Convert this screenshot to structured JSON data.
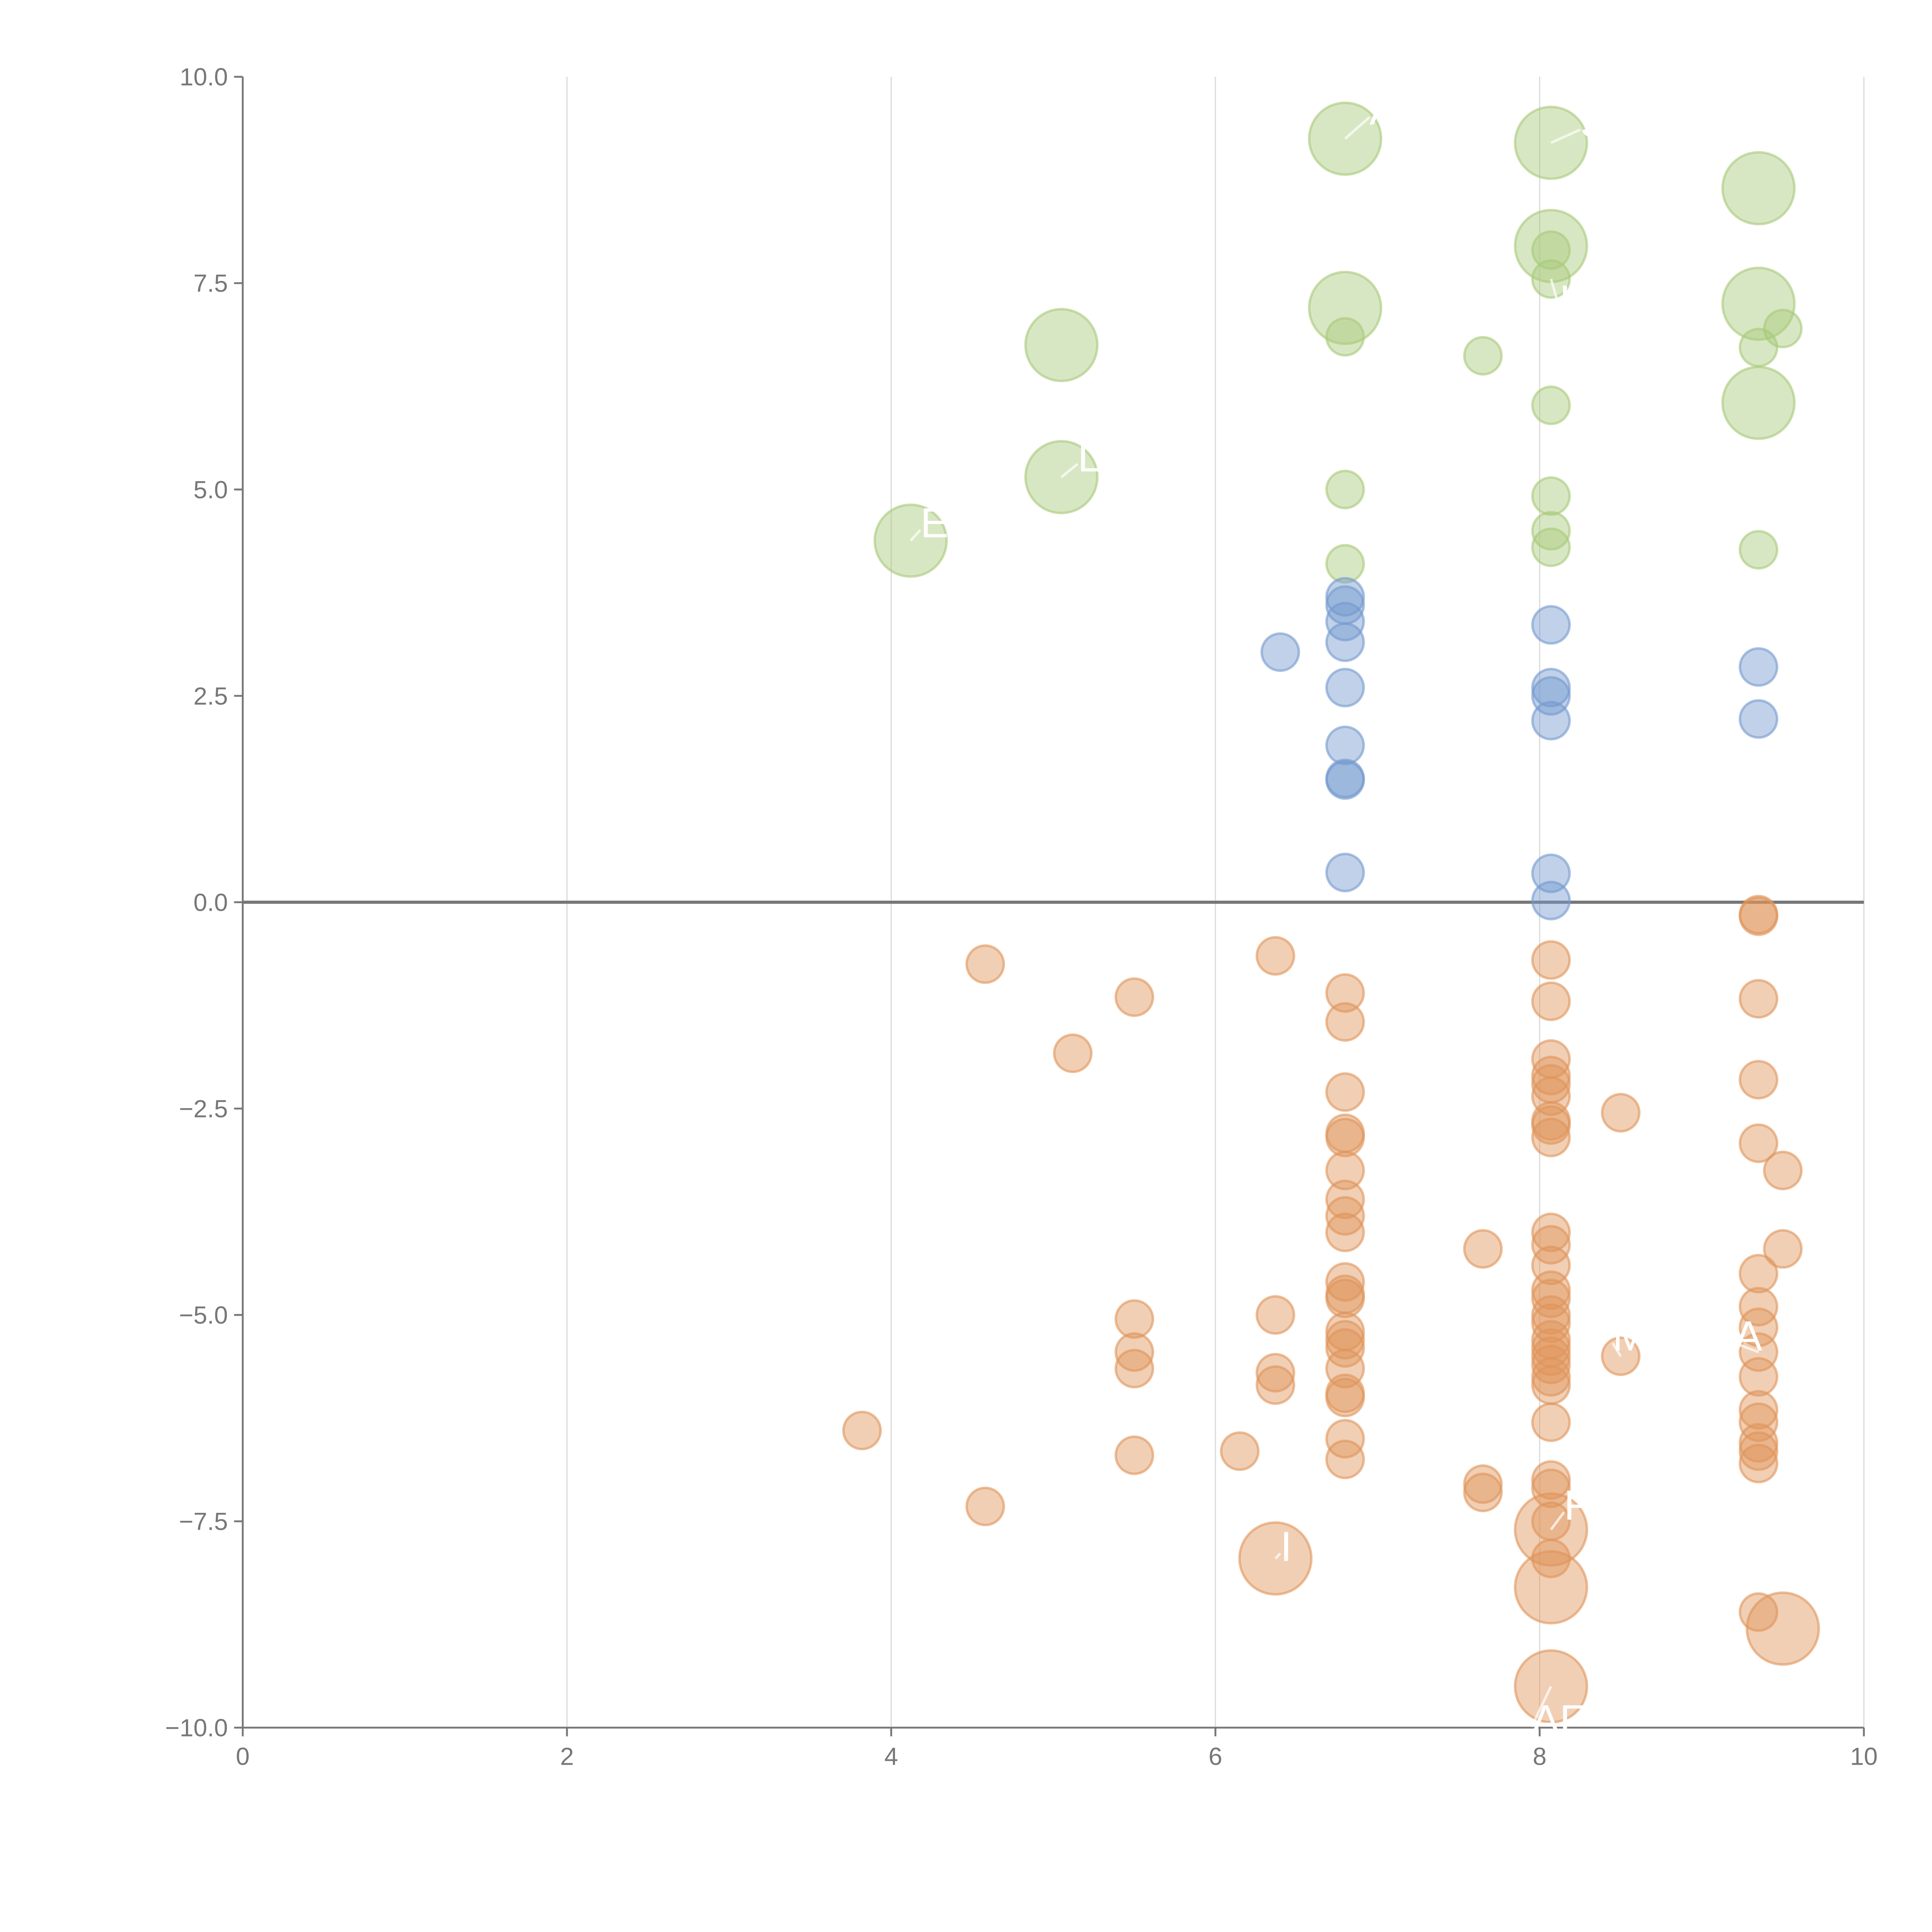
{
  "chart_data": {
    "type": "scatter",
    "title": "",
    "xlabel": "",
    "ylabel": "",
    "xlim": [
      0,
      10
    ],
    "ylim": [
      -10,
      10
    ],
    "xticks": [
      "0",
      "2",
      "4",
      "6",
      "8",
      "10"
    ],
    "xtick_values": [
      0,
      2,
      4,
      6,
      8,
      10
    ],
    "yticks": [
      "10.0",
      "7.5",
      "5.0",
      "2.5",
      "0.0",
      "−2.5",
      "−5.0",
      "−7.5",
      "−10.0"
    ],
    "ytick_values": [
      10,
      7.5,
      5,
      2.5,
      0,
      -2.5,
      -5,
      -7.5,
      -10
    ],
    "grid": "vertical",
    "zero_line": true,
    "size_note": "points are [x, y, size] where size 1=small, 2=large",
    "series": [
      {
        "name": "green",
        "color": "#a9c97a",
        "points": [
          [
            6.8,
            9.25,
            2
          ],
          [
            8.07,
            9.2,
            2
          ],
          [
            9.35,
            8.65,
            2
          ],
          [
            8.07,
            7.95,
            2
          ],
          [
            6.8,
            7.2,
            2
          ],
          [
            5.05,
            6.75,
            2
          ],
          [
            9.35,
            7.25,
            2
          ],
          [
            9.35,
            6.05,
            2
          ],
          [
            5.05,
            5.15,
            2
          ],
          [
            4.12,
            4.38,
            2
          ],
          [
            8.07,
            7.9,
            1
          ],
          [
            8.07,
            7.55,
            1
          ],
          [
            6.8,
            6.85,
            1
          ],
          [
            7.65,
            6.62,
            1
          ],
          [
            9.35,
            6.72,
            1
          ],
          [
            9.5,
            6.95,
            1
          ],
          [
            8.07,
            6.02,
            1
          ],
          [
            6.8,
            5.0,
            1
          ],
          [
            8.07,
            4.92,
            1
          ],
          [
            8.07,
            4.5,
            1
          ],
          [
            8.07,
            4.3,
            1
          ],
          [
            6.8,
            4.1,
            1
          ],
          [
            9.35,
            4.27,
            1
          ]
        ]
      },
      {
        "name": "blue",
        "color": "#7499cf",
        "points": [
          [
            6.8,
            3.7,
            1
          ],
          [
            6.8,
            3.6,
            1
          ],
          [
            6.8,
            3.4,
            1
          ],
          [
            6.8,
            3.15,
            1
          ],
          [
            6.4,
            3.03,
            1
          ],
          [
            8.07,
            3.36,
            1
          ],
          [
            9.35,
            2.85,
            1
          ],
          [
            6.8,
            2.6,
            1
          ],
          [
            8.07,
            2.6,
            1
          ],
          [
            8.07,
            2.5,
            1
          ],
          [
            8.07,
            2.2,
            1
          ],
          [
            9.35,
            2.22,
            1
          ],
          [
            6.8,
            1.9,
            1
          ],
          [
            6.8,
            1.5,
            1
          ],
          [
            6.8,
            1.48,
            1
          ],
          [
            6.8,
            0.36,
            1
          ],
          [
            8.07,
            0.35,
            1
          ],
          [
            8.07,
            0.02,
            1
          ]
        ]
      },
      {
        "name": "orange",
        "color": "#e0955a",
        "points": [
          [
            4.58,
            -0.75,
            1
          ],
          [
            5.5,
            -1.15,
            1
          ],
          [
            5.12,
            -1.83,
            1
          ],
          [
            6.37,
            -0.65,
            1
          ],
          [
            6.8,
            -1.1,
            1
          ],
          [
            6.8,
            -1.45,
            1
          ],
          [
            6.8,
            -2.3,
            1
          ],
          [
            6.8,
            -2.8,
            1
          ],
          [
            6.8,
            -2.85,
            1
          ],
          [
            6.8,
            -3.25,
            1
          ],
          [
            6.8,
            -3.6,
            1
          ],
          [
            6.8,
            -3.8,
            1
          ],
          [
            6.8,
            -4.0,
            1
          ],
          [
            6.8,
            -4.6,
            1
          ],
          [
            6.8,
            -4.75,
            1
          ],
          [
            6.8,
            -4.8,
            1
          ],
          [
            6.8,
            -5.2,
            1
          ],
          [
            6.8,
            -5.3,
            1
          ],
          [
            6.8,
            -5.4,
            1
          ],
          [
            6.8,
            -5.65,
            1
          ],
          [
            6.8,
            -5.95,
            1
          ],
          [
            6.8,
            -6.0,
            1
          ],
          [
            6.8,
            -6.5,
            1
          ],
          [
            6.8,
            -6.75,
            1
          ],
          [
            8.07,
            -0.7,
            1
          ],
          [
            8.07,
            -1.2,
            1
          ],
          [
            8.07,
            -1.9,
            1
          ],
          [
            8.07,
            -2.1,
            1
          ],
          [
            8.07,
            -2.2,
            1
          ],
          [
            8.07,
            -2.35,
            1
          ],
          [
            8.07,
            -2.65,
            1
          ],
          [
            8.07,
            -2.7,
            1
          ],
          [
            8.07,
            -2.85,
            1
          ],
          [
            8.07,
            -4.0,
            1
          ],
          [
            8.07,
            -4.15,
            1
          ],
          [
            8.07,
            -4.4,
            1
          ],
          [
            8.07,
            -4.7,
            1
          ],
          [
            8.07,
            -4.8,
            1
          ],
          [
            8.07,
            -5.0,
            1
          ],
          [
            8.07,
            -5.1,
            1
          ],
          [
            8.07,
            -5.3,
            1
          ],
          [
            8.07,
            -5.4,
            1
          ],
          [
            8.07,
            -5.5,
            1
          ],
          [
            8.07,
            -5.6,
            1
          ],
          [
            8.07,
            -5.75,
            1
          ],
          [
            8.07,
            -5.85,
            1
          ],
          [
            8.07,
            -6.3,
            1
          ],
          [
            8.07,
            -7.0,
            1
          ],
          [
            8.07,
            -7.1,
            1
          ],
          [
            8.07,
            -7.5,
            1
          ],
          [
            8.07,
            -7.95,
            1
          ],
          [
            8.5,
            -2.55,
            1
          ],
          [
            8.5,
            -5.5,
            1
          ],
          [
            7.65,
            -4.2,
            1
          ],
          [
            7.65,
            -7.05,
            1
          ],
          [
            7.65,
            -7.15,
            1
          ],
          [
            9.35,
            -0.15,
            1
          ],
          [
            9.35,
            -0.17,
            1
          ],
          [
            9.35,
            -1.17,
            1
          ],
          [
            9.35,
            -2.15,
            1
          ],
          [
            9.35,
            -2.92,
            1
          ],
          [
            9.5,
            -3.25,
            1
          ],
          [
            9.5,
            -4.2,
            1
          ],
          [
            9.35,
            -4.5,
            1
          ],
          [
            9.35,
            -4.9,
            1
          ],
          [
            9.35,
            -5.15,
            1
          ],
          [
            9.35,
            -5.45,
            1
          ],
          [
            9.35,
            -5.75,
            1
          ],
          [
            9.35,
            -6.15,
            1
          ],
          [
            9.35,
            -6.3,
            1
          ],
          [
            9.35,
            -6.55,
            1
          ],
          [
            9.35,
            -6.65,
            1
          ],
          [
            9.35,
            -6.8,
            1
          ],
          [
            9.35,
            -8.6,
            1
          ],
          [
            5.5,
            -5.05,
            1
          ],
          [
            5.5,
            -5.45,
            1
          ],
          [
            5.5,
            -5.65,
            1
          ],
          [
            5.5,
            -6.7,
            1
          ],
          [
            6.37,
            -5.0,
            1
          ],
          [
            6.37,
            -5.7,
            1
          ],
          [
            6.37,
            -5.85,
            1
          ],
          [
            6.15,
            -6.65,
            1
          ],
          [
            3.82,
            -6.4,
            1
          ],
          [
            4.58,
            -7.32,
            1
          ],
          [
            6.37,
            -7.95,
            2
          ],
          [
            8.07,
            -7.6,
            2
          ],
          [
            8.07,
            -8.3,
            2
          ],
          [
            9.5,
            -8.8,
            2
          ],
          [
            8.07,
            -9.5,
            2
          ]
        ]
      }
    ],
    "annotations": [
      {
        "text": "A",
        "x": 6.8,
        "y": 9.25,
        "tx": 6.95,
        "ty": 9.6
      },
      {
        "text": "S",
        "x": 8.07,
        "y": 9.2,
        "tx": 8.25,
        "ty": 9.45
      },
      {
        "text": "I",
        "x": 8.07,
        "y": 7.55,
        "tx": 8.12,
        "ty": 7.3
      },
      {
        "text": "L",
        "x": 5.05,
        "y": 5.15,
        "tx": 5.15,
        "ty": 5.4
      },
      {
        "text": "E",
        "x": 4.12,
        "y": 4.38,
        "tx": 4.18,
        "ty": 4.6
      },
      {
        "text": "M",
        "x": 8.5,
        "y": -5.5,
        "tx": 8.45,
        "ty": -5.25
      },
      {
        "text": "A",
        "x": 9.35,
        "y": -5.45,
        "tx": 9.2,
        "ty": -5.25
      },
      {
        "text": "F",
        "x": 8.07,
        "y": -7.6,
        "tx": 8.15,
        "ty": -7.3
      },
      {
        "text": "I",
        "x": 6.37,
        "y": -7.95,
        "tx": 6.4,
        "ty": -7.8
      },
      {
        "text": "AF",
        "x": 8.07,
        "y": -9.5,
        "tx": 7.95,
        "ty": -9.9
      }
    ]
  }
}
